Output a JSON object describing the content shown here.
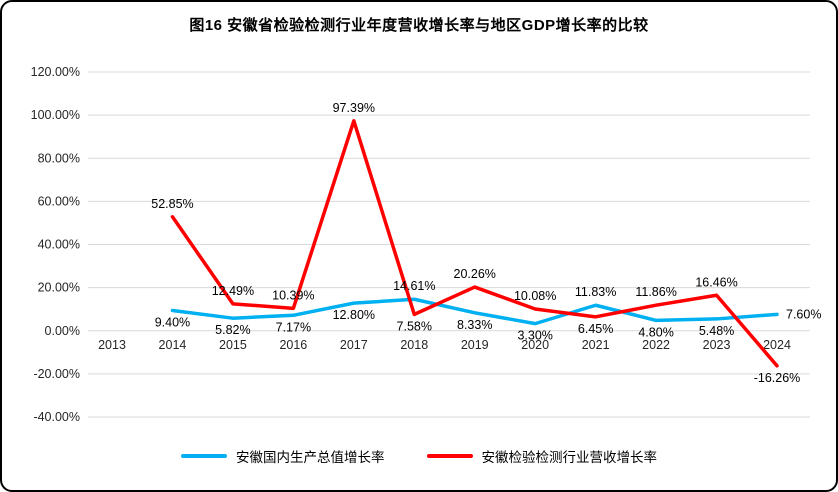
{
  "chart_data": {
    "type": "line",
    "title": "图16  安徽省检验检测行业年度营收增长率与地区GDP增长率的比较",
    "categories": [
      "2013",
      "2014",
      "2015",
      "2016",
      "2017",
      "2018",
      "2019",
      "2020",
      "2021",
      "2022",
      "2023",
      "2024"
    ],
    "series": [
      {
        "name": "安徽国内生产总值增长率",
        "color": "#00B0F0",
        "values": [
          null,
          9.4,
          5.82,
          7.17,
          12.8,
          14.61,
          8.33,
          3.3,
          11.83,
          4.8,
          5.48,
          7.6
        ]
      },
      {
        "name": "安徽检验检测行业营收增长率",
        "color": "#FF0000",
        "values": [
          null,
          52.85,
          12.49,
          10.39,
          97.39,
          7.58,
          20.26,
          10.08,
          6.45,
          11.86,
          16.46,
          -16.26
        ]
      }
    ],
    "y_axis": {
      "min": -40,
      "max": 120,
      "step": 20,
      "tick_labels": [
        "120.00%",
        "100.00%",
        "80.00%",
        "60.00%",
        "40.00%",
        "20.00%",
        "0.00%",
        "-20.00%",
        "-40.00%"
      ]
    },
    "label_format": "0.00%",
    "grid": true,
    "legend_position": "bottom",
    "colors": {
      "gridline": "#d9d9d9",
      "axis_text": "#262626",
      "data_label": "#000000",
      "frame_border": "#000000"
    }
  }
}
